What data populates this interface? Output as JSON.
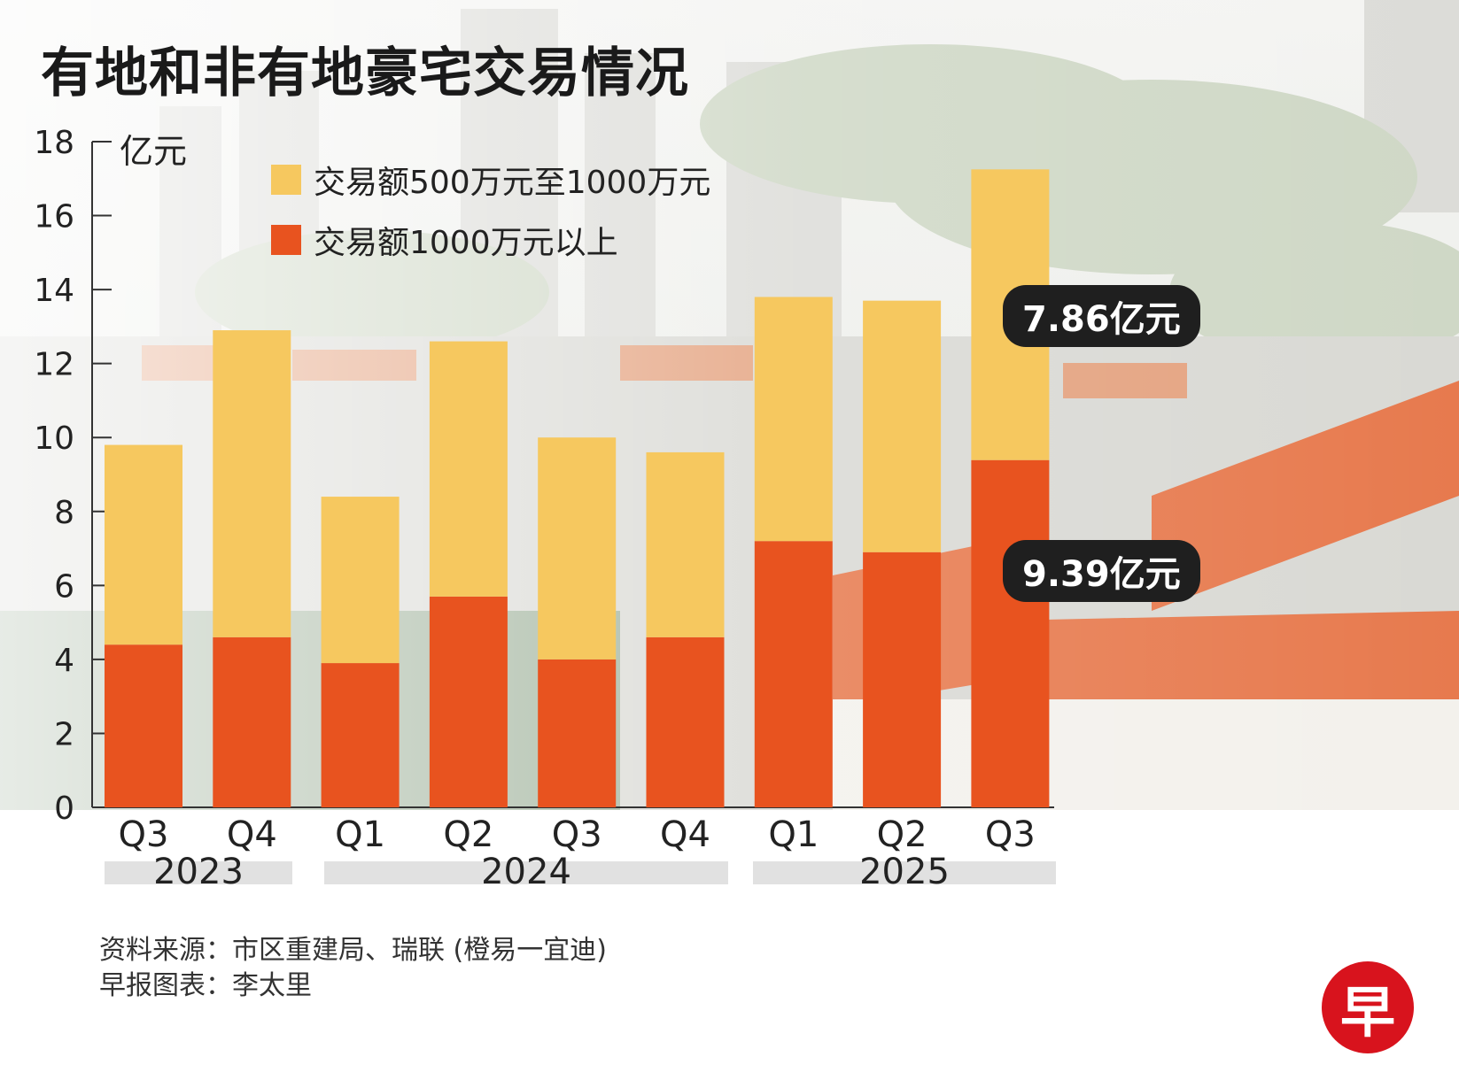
{
  "title": "有地和非有地豪宅交易情况",
  "unit_label": "亿元",
  "legend": [
    {
      "label": "交易额500万元至1000万元",
      "color": "#f6c85f"
    },
    {
      "label": "交易额1000万元以上",
      "color": "#e8531f"
    }
  ],
  "years": [
    "2023",
    "2024",
    "2025"
  ],
  "source": {
    "line1": "资料来源：市区重建局、瑞联 (橙易一宜迪)",
    "line2": "早报图表：李太里"
  },
  "logo_glyph": "早",
  "colors": {
    "lower": "#e8531f",
    "upper": "#f6c85f",
    "callout_bg": "#1f1f1f"
  },
  "chart_data": {
    "type": "bar",
    "stacked": true,
    "title": "有地和非有地豪宅交易情况",
    "ylabel": "亿元",
    "ylim": [
      0,
      18
    ],
    "yticks": [
      0,
      2,
      4,
      6,
      8,
      10,
      12,
      14,
      16,
      18
    ],
    "categories": [
      "Q3",
      "Q4",
      "Q1",
      "Q2",
      "Q3",
      "Q4",
      "Q1",
      "Q2",
      "Q3"
    ],
    "series": [
      {
        "name": "交易额1000万元以上",
        "values": [
          4.4,
          4.6,
          3.9,
          5.7,
          4.0,
          4.6,
          7.2,
          6.9,
          9.39
        ]
      },
      {
        "name": "交易额500万元至1000万元",
        "values": [
          5.4,
          8.3,
          4.5,
          6.9,
          6.0,
          5.0,
          6.6,
          6.8,
          7.86
        ]
      }
    ],
    "annotations": [
      {
        "text": "7.86亿元",
        "category_index": 8,
        "series": "交易额500万元至1000万元"
      },
      {
        "text": "9.39亿元",
        "category_index": 8,
        "series": "交易额1000万元以上"
      }
    ]
  }
}
